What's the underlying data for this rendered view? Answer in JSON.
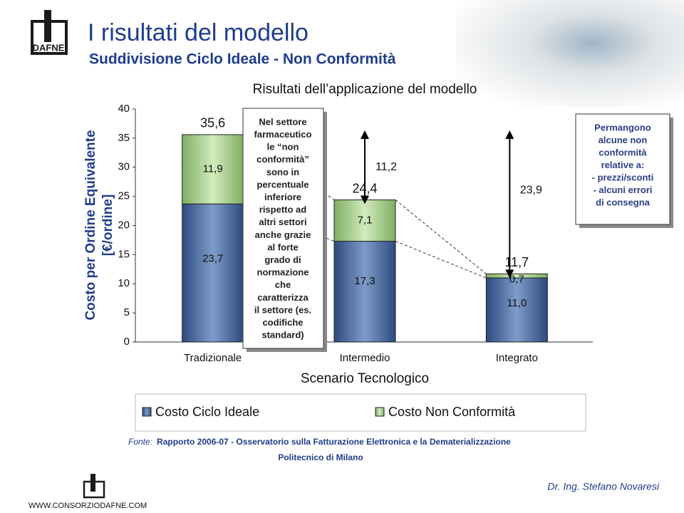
{
  "logo_text": "DAFNE",
  "title": "I risultati del modello",
  "subtitle": "Suddivisione Ciclo Ideale - Non Conformità",
  "callout_left": [
    "Nel settore",
    "farmaceutico",
    "le “non",
    "conformità”",
    "sono in",
    "percentuale",
    "inferiore",
    "rispetto ad",
    "altri settori",
    "anche grazie",
    "al forte",
    "grado di",
    "normazione",
    "che",
    "caratterizza",
    "il settore (es.",
    "codifiche",
    "standard)"
  ],
  "callout_right": [
    "Permangono",
    "alcune non",
    "conformità",
    "relative a:",
    "- prezzi/sconti",
    "- alcuni errori",
    "di consegna"
  ],
  "source_label": "Fonte:",
  "source": "Rapporto 2006-07 - Osservatorio sulla Fatturazione Elettronica e la Dematerializzazione",
  "source_line2": "Politecnico di Milano",
  "website": "WWW.CONSORZIODAFNE.COM",
  "author": "Dr. Ing. Stefano Novaresi",
  "chart_data": {
    "type": "stacked_bar",
    "title": "Risultati dell’applicazione del modello",
    "y_label": [
      "Costo per Ordine Equivalente",
      "[€/ordine]"
    ],
    "x_label": "Scenario Tecnologico",
    "categories": [
      "Tradizionale",
      "Intermedio",
      "Integrato"
    ],
    "series": [
      {
        "name": "Costo Ciclo Ideale",
        "color": "#4a6aa0",
        "values": [
          23.7,
          17.3,
          11.0
        ],
        "value_labels": [
          "23,7",
          "17,3",
          "11,0"
        ]
      },
      {
        "name": "Costo Non Conformità",
        "color": "#a9cf8c",
        "values": [
          11.9,
          7.1,
          0.7
        ],
        "value_labels": [
          "11,9",
          "7,1",
          "0,7"
        ]
      }
    ],
    "totals": {
      "values": [
        35.6,
        24.4,
        11.7
      ],
      "value_labels": [
        "35,6",
        "24,4",
        "11,7"
      ]
    },
    "differences": {
      "values": [
        11.2,
        23.9
      ],
      "value_labels": [
        "11,2",
        "23,9"
      ]
    },
    "ylim": [
      0,
      40
    ],
    "yticks": [
      0,
      5,
      10,
      15,
      20,
      25,
      30,
      35,
      40
    ],
    "legend": "bottom"
  }
}
